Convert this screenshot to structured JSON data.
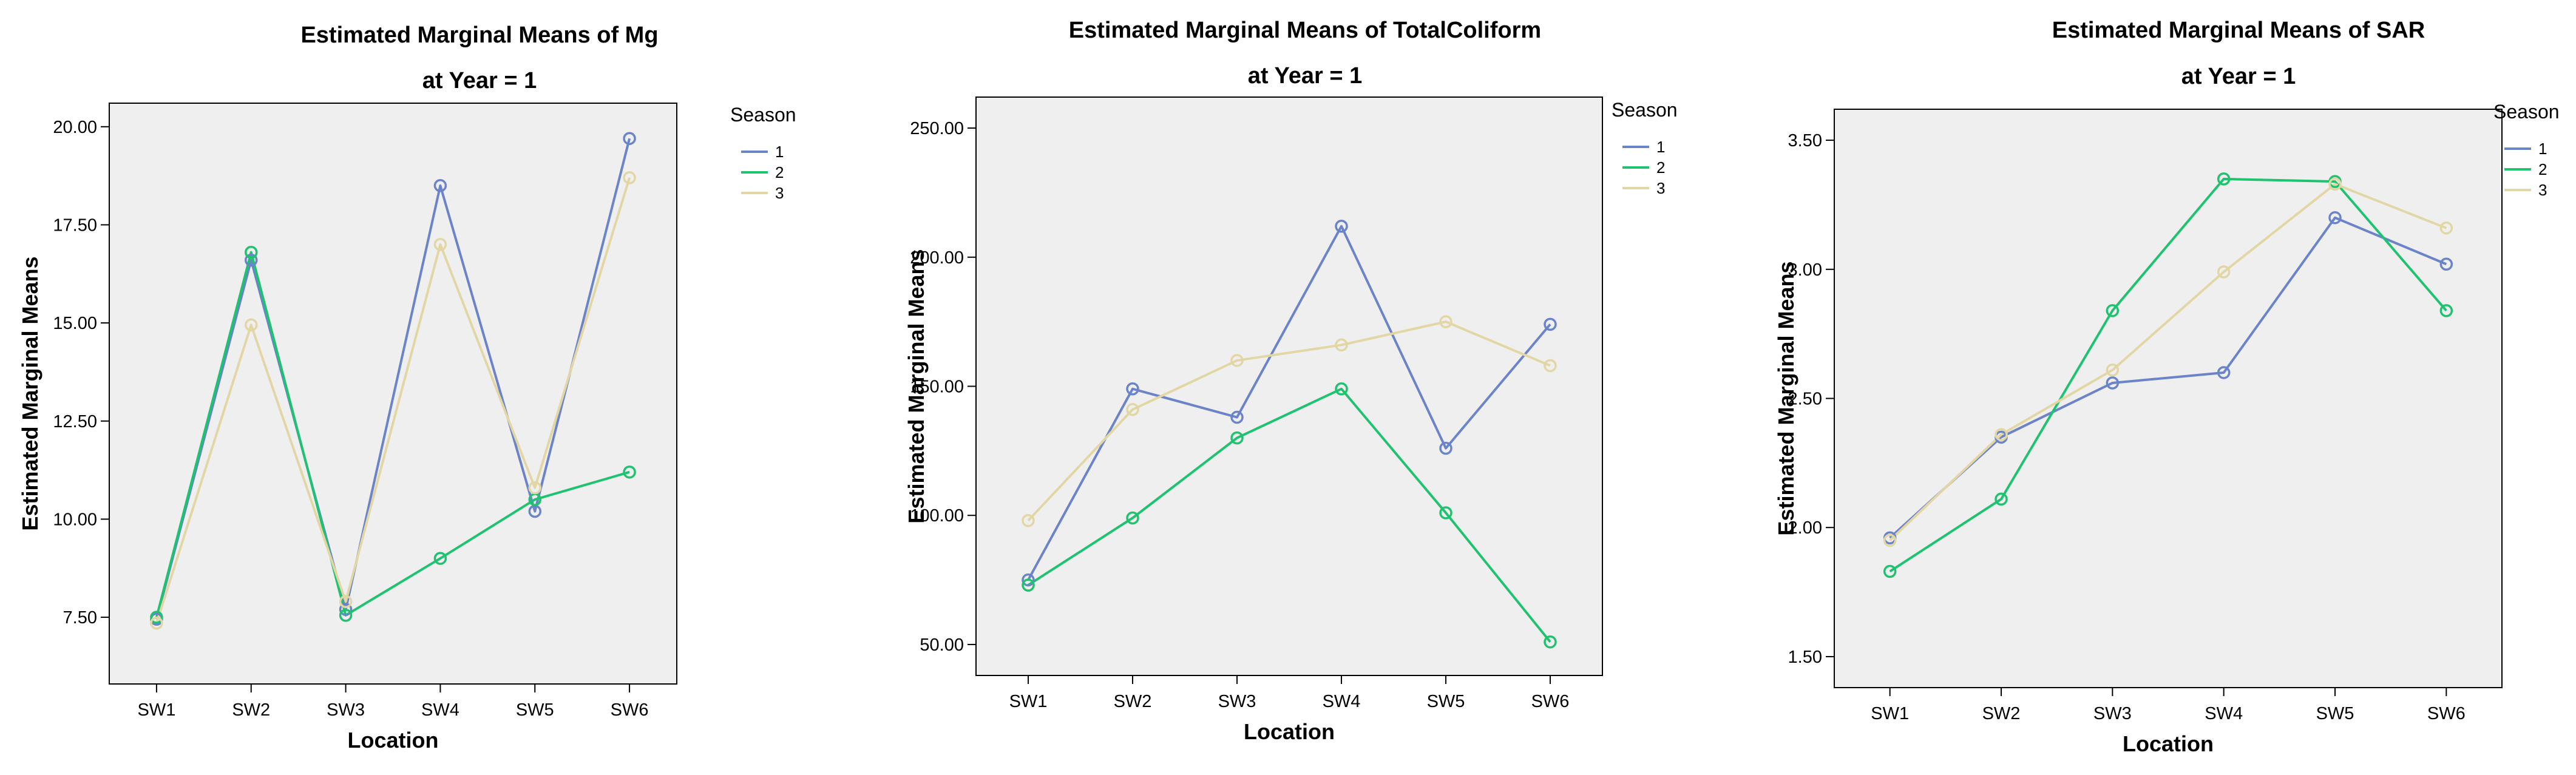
{
  "colors": {
    "series_1": "#6b84c9",
    "series_2": "#1ec26f",
    "series_3": "#e2d7a4",
    "plot_bg": "#efefef"
  },
  "chart_data": [
    {
      "type": "line",
      "title": "Estimated Marginal Means of Mg",
      "subtitle": "at Year = 1",
      "xlabel": "Location",
      "ylabel": "Estimated Marginal Means",
      "categories": [
        "SW1",
        "SW2",
        "SW3",
        "SW4",
        "SW5",
        "SW6"
      ],
      "ylim": [
        5.8,
        20.6
      ],
      "yticks": [
        7.5,
        10.0,
        12.5,
        15.0,
        17.5,
        20.0
      ],
      "ytick_labels": [
        "7.50",
        "10.00",
        "12.50",
        "15.00",
        "17.50",
        "20.00"
      ],
      "legend": {
        "title": "Season",
        "position": "right"
      },
      "series": [
        {
          "name": "1",
          "values": [
            7.45,
            16.6,
            7.7,
            18.5,
            10.2,
            19.7
          ]
        },
        {
          "name": "2",
          "values": [
            7.5,
            16.8,
            7.55,
            9.0,
            10.5,
            11.2
          ]
        },
        {
          "name": "3",
          "values": [
            7.35,
            14.95,
            7.9,
            17.0,
            10.8,
            18.7
          ]
        }
      ]
    },
    {
      "type": "line",
      "title": "Estimated Marginal Means of TotalColiform",
      "subtitle": "at Year = 1",
      "xlabel": "Location",
      "ylabel": "Estimated Marginal Means",
      "categories": [
        "SW1",
        "SW2",
        "SW3",
        "SW4",
        "SW5",
        "SW6"
      ],
      "ylim": [
        38,
        262
      ],
      "yticks": [
        50,
        100,
        150,
        200,
        250
      ],
      "ytick_labels": [
        "50.00",
        "100.00",
        "150.00",
        "200.00",
        "250.00"
      ],
      "legend": {
        "title": "Season",
        "position": "right"
      },
      "series": [
        {
          "name": "1",
          "values": [
            75,
            149,
            138,
            212,
            126,
            174
          ]
        },
        {
          "name": "2",
          "values": [
            73,
            99,
            130,
            149,
            101,
            51
          ]
        },
        {
          "name": "3",
          "values": [
            98,
            141,
            160,
            166,
            175,
            158
          ]
        }
      ]
    },
    {
      "type": "line",
      "title": "Estimated Marginal Means of SAR",
      "subtitle": "at Year = 1",
      "xlabel": "Location",
      "ylabel": "Estimated Marginal Means",
      "categories": [
        "SW1",
        "SW2",
        "SW3",
        "SW4",
        "SW5",
        "SW6"
      ],
      "ylim": [
        1.38,
        3.62
      ],
      "yticks": [
        1.5,
        2.0,
        2.5,
        3.0,
        3.5
      ],
      "ytick_labels": [
        "1.50",
        "2.00",
        "2.50",
        "3.00",
        "3.50"
      ],
      "legend": {
        "title": "Season",
        "position": "right"
      },
      "series": [
        {
          "name": "1",
          "values": [
            1.96,
            2.35,
            2.56,
            2.6,
            3.2,
            3.02
          ]
        },
        {
          "name": "2",
          "values": [
            1.83,
            2.11,
            2.84,
            3.35,
            3.34,
            2.84
          ]
        },
        {
          "name": "3",
          "values": [
            1.95,
            2.36,
            2.61,
            2.99,
            3.33,
            3.16
          ]
        }
      ]
    }
  ]
}
